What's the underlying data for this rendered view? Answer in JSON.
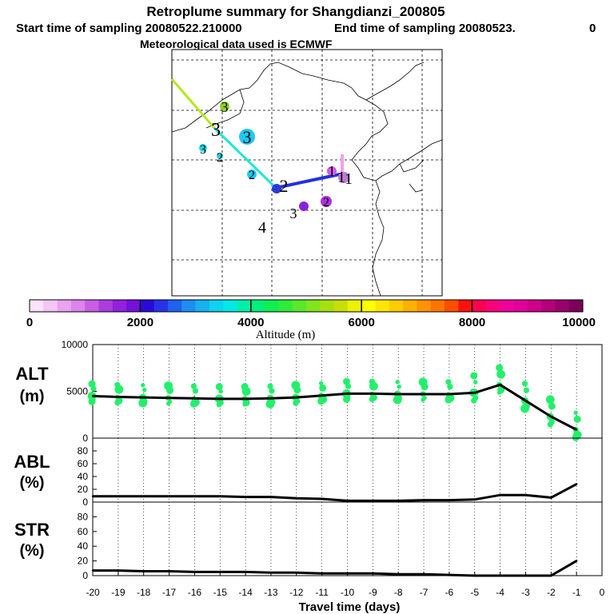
{
  "title": "Retroplume summary for Shangdianzi_200805",
  "subtitle_start": "Start time of sampling 20080522.210000",
  "subtitle_end": "End time of sampling 20080523.",
  "subtitle_end_hour": "0",
  "met_line": "Meteorological data used is ECMWF",
  "colorbar": {
    "label": "Altitude (m)",
    "ticks": [
      "0",
      "2000",
      "4000",
      "6000",
      "8000",
      "10000"
    ],
    "colors": [
      "#fbe3fb",
      "#f3c6f3",
      "#e9a3ef",
      "#dc83ec",
      "#c85ee6",
      "#ad3ce0",
      "#9220dc",
      "#7410da",
      "#2a0ad8",
      "#2733e8",
      "#1f62f0",
      "#1d8ef2",
      "#17b1f0",
      "#0ed3f0",
      "#00e8e8",
      "#00f0a8",
      "#00f07a",
      "#10ee50",
      "#30ec3a",
      "#58e828",
      "#82e41a",
      "#a6e010",
      "#c8de08",
      "#ecf200",
      "#ffff00",
      "#ffe600",
      "#ffcc00",
      "#ffb000",
      "#ff9400",
      "#ff7400",
      "#ff4e00",
      "#ff1010",
      "#ff0050",
      "#f8007c",
      "#f0009c",
      "#e2009a",
      "#cc008c",
      "#b4007c",
      "#9a006c",
      "#7c005a"
    ]
  },
  "map_labels": [
    "3",
    "3",
    "3",
    "3",
    "2",
    "2",
    "2",
    "1",
    "1",
    "1",
    "2",
    "3",
    "4"
  ],
  "chart_data": [
    {
      "type": "line",
      "title": "ALT",
      "ylabel": "ALT (m)",
      "ylabel_name": "ALT",
      "ylabel_unit": "(m)",
      "ylim": [
        0,
        10000
      ],
      "yticks": [
        "10000",
        "5000",
        "0"
      ],
      "x": [
        -20,
        -19,
        -18,
        -17,
        -16,
        -15,
        -14,
        -13,
        -12,
        -11,
        -10,
        -9,
        -8,
        -7,
        -6,
        -5,
        -4,
        -3,
        -2,
        -1
      ],
      "values": [
        4500,
        4400,
        4350,
        4300,
        4250,
        4200,
        4200,
        4250,
        4350,
        4550,
        4750,
        4750,
        4700,
        4700,
        4700,
        4850,
        5700,
        4000,
        2300,
        900
      ]
    },
    {
      "type": "line",
      "title": "ABL",
      "ylabel": "ABL (%)",
      "ylabel_name": "ABL",
      "ylabel_unit": "(%)",
      "ylim": [
        0,
        100
      ],
      "yticks": [
        "80",
        "60",
        "40",
        "20",
        "0"
      ],
      "x": [
        -20,
        -19,
        -18,
        -17,
        -16,
        -15,
        -14,
        -13,
        -12,
        -11,
        -10,
        -9,
        -8,
        -7,
        -6,
        -5,
        -4,
        -3,
        -2,
        -1
      ],
      "values": [
        9,
        9,
        9,
        9,
        9,
        9,
        8,
        8,
        6,
        5,
        2,
        2,
        2,
        3,
        3,
        4,
        11,
        11,
        7,
        28
      ]
    },
    {
      "type": "line",
      "title": "STR",
      "ylabel": "STR (%)",
      "ylabel_name": "STR",
      "ylabel_unit": "(%)",
      "ylim": [
        0,
        100
      ],
      "yticks": [
        "80",
        "60",
        "40",
        "20",
        "0"
      ],
      "x": [
        -20,
        -19,
        -18,
        -17,
        -16,
        -15,
        -14,
        -13,
        -12,
        -11,
        -10,
        -9,
        -8,
        -7,
        -6,
        -5,
        -4,
        -3,
        -2,
        -1
      ],
      "values": [
        7,
        7,
        6,
        6,
        5,
        5,
        5,
        4,
        4,
        3,
        3,
        3,
        2,
        2,
        1,
        0,
        0,
        0,
        0,
        20
      ]
    }
  ],
  "xaxis": {
    "label": "Travel time (days)",
    "xlim": [
      -20,
      0
    ],
    "ticks": [
      "-20",
      "-19",
      "-18",
      "-17",
      "-16",
      "-15",
      "-14",
      "-13",
      "-12",
      "-11",
      "-10",
      "-9",
      "-8",
      "-7",
      "-6",
      "-5",
      "-4",
      "-3",
      "-2",
      "-1",
      "0"
    ]
  },
  "scatter_color": "#22f06a",
  "line_color": "#000000"
}
